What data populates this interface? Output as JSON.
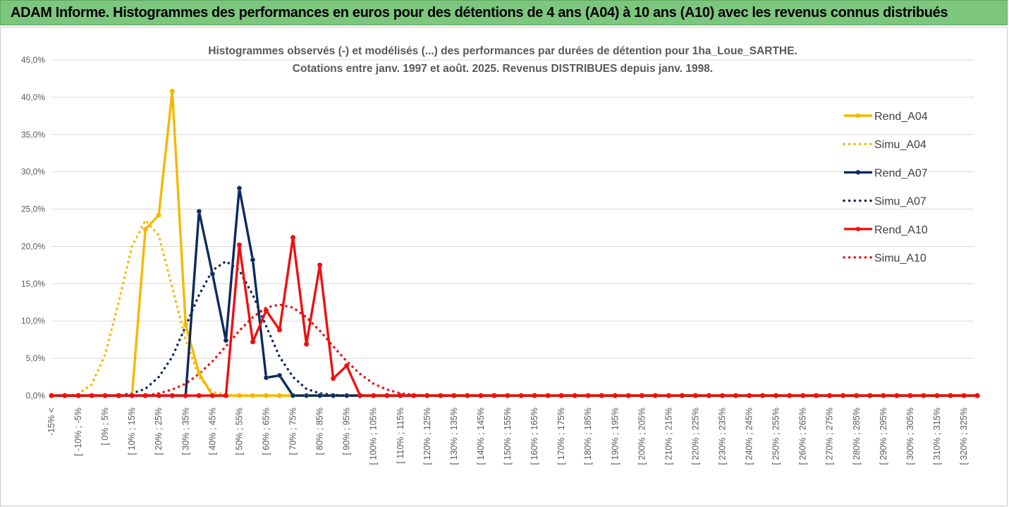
{
  "banner": {
    "title": "ADAM Informe. Histogrammes des performances en euros pour des détentions de 4 ans (A04) à 10 ans (A10) avec les revenus connus distribués"
  },
  "colors": {
    "banner_bg": "#7dc67e",
    "A04": "#f5b800",
    "A07": "#0d2a5e",
    "A10": "#ee1010",
    "gridline": "#d9d9d9"
  },
  "chart_data": {
    "type": "line",
    "title": "Histogrammes observés (-) et modélisés (...) des performances par durées de détention pour 1ha_Loue_SARTHE.",
    "subtitle": "Cotations entre janv. 1997 et août. 2025. Revenus DISTRIBUES depuis janv. 1998.",
    "xlabel": "",
    "ylabel": "",
    "ylim": [
      0,
      45
    ],
    "y_ticks": [
      "0,0%",
      "5,0%",
      "10,0%",
      "15,0%",
      "20,0%",
      "25,0%",
      "30,0%",
      "35,0%",
      "40,0%",
      "45,0%"
    ],
    "grid": "horizontal",
    "legend_position": "right",
    "x_labels": [
      "-15% <",
      "[ -10% ; -5%",
      "[ 0% ; 5%",
      "[ 10% ; 15%",
      "[ 20% ; 25%",
      "[ 30% ; 35%",
      "[ 40% ; 45%",
      "[ 50% ; 55%",
      "[ 60% ; 65%",
      "[ 70% ; 75%",
      "[ 80% ; 85%",
      "[ 90% ; 95%",
      "[ 100% ; 105%",
      "[ 110% ; 115%",
      "[ 120% ; 125%",
      "[ 130% ; 135%",
      "[ 140% ; 145%",
      "[ 150% ; 155%",
      "[ 160% ; 165%",
      "[ 170% ; 175%",
      "[ 180% ; 185%",
      "[ 190% ; 195%",
      "[ 200% ; 205%",
      "[ 210% ; 215%",
      "[ 220% ; 225%",
      "[ 230% ; 235%",
      "[ 240% ; 245%",
      "[ 250% ; 255%",
      "[ 260% ; 265%",
      "[ 270% ; 275%",
      "[ 280% ; 285%",
      "[ 290% ; 295%",
      "[ 300% ; 305%",
      "[ 310% ; 315%",
      "[ 320% ; 325%"
    ],
    "series": [
      {
        "name": "Rend_A04",
        "style": "solid",
        "color": "#f5b800",
        "values": [
          0,
          0,
          0,
          0,
          0,
          0,
          0,
          22.3,
          24.2,
          40.8,
          9.5,
          3.0,
          0,
          0,
          0,
          0,
          0,
          0,
          0,
          0,
          0,
          0,
          0,
          0,
          0,
          0,
          0,
          0,
          0,
          0,
          0,
          0,
          0,
          0,
          0,
          0,
          0,
          0,
          0,
          0,
          0,
          0,
          0,
          0,
          0,
          0,
          0,
          0,
          0,
          0,
          0,
          0,
          0,
          0,
          0,
          0,
          0,
          0,
          0,
          0,
          0,
          0,
          0,
          0,
          0,
          0,
          0,
          0,
          0,
          0
        ]
      },
      {
        "name": "Simu_A04",
        "style": "dotted",
        "color": "#f5b800",
        "values": [
          0,
          0,
          0.2,
          1.5,
          5.5,
          12.5,
          20.0,
          23.5,
          21.5,
          14.5,
          7.5,
          2.5,
          0.5,
          0.1,
          0,
          0,
          0,
          0,
          0,
          0,
          0,
          0,
          0,
          0,
          0,
          0,
          0,
          0,
          0,
          0,
          0,
          0,
          0,
          0,
          0,
          0,
          0,
          0,
          0,
          0,
          0,
          0,
          0,
          0,
          0,
          0,
          0,
          0,
          0,
          0,
          0,
          0,
          0,
          0,
          0,
          0,
          0,
          0,
          0,
          0,
          0,
          0,
          0,
          0,
          0,
          0,
          0,
          0,
          0,
          0
        ]
      },
      {
        "name": "Rend_A07",
        "style": "solid",
        "color": "#0d2a5e",
        "values": [
          0,
          0,
          0,
          0,
          0,
          0,
          0,
          0,
          0,
          0,
          0,
          24.7,
          16.3,
          7.4,
          27.8,
          18.2,
          2.4,
          2.7,
          0,
          0,
          0,
          0,
          0,
          0,
          0,
          0,
          0,
          0,
          0,
          0,
          0,
          0,
          0,
          0,
          0,
          0,
          0,
          0,
          0,
          0,
          0,
          0,
          0,
          0,
          0,
          0,
          0,
          0,
          0,
          0,
          0,
          0,
          0,
          0,
          0,
          0,
          0,
          0,
          0,
          0,
          0,
          0,
          0,
          0,
          0,
          0,
          0,
          0,
          0,
          0
        ]
      },
      {
        "name": "Simu_A07",
        "style": "dotted",
        "color": "#0d2a5e",
        "values": [
          0,
          0,
          0,
          0,
          0,
          0,
          0.3,
          0.9,
          2.5,
          5.2,
          9.3,
          13.5,
          16.8,
          18.0,
          16.8,
          13.5,
          9.3,
          5.2,
          2.5,
          0.9,
          0.3,
          0.1,
          0,
          0,
          0,
          0,
          0,
          0,
          0,
          0,
          0,
          0,
          0,
          0,
          0,
          0,
          0,
          0,
          0,
          0,
          0,
          0,
          0,
          0,
          0,
          0,
          0,
          0,
          0,
          0,
          0,
          0,
          0,
          0,
          0,
          0,
          0,
          0,
          0,
          0,
          0,
          0,
          0,
          0,
          0,
          0,
          0,
          0,
          0,
          0
        ]
      },
      {
        "name": "Rend_A10",
        "style": "solid",
        "color": "#ee1010",
        "values": [
          0,
          0,
          0,
          0,
          0,
          0,
          0,
          0,
          0,
          0,
          0,
          0,
          0,
          0,
          20.2,
          7.2,
          11.4,
          8.8,
          21.2,
          6.9,
          17.5,
          2.3,
          4.0,
          0,
          0,
          0,
          0,
          0,
          0,
          0,
          0,
          0,
          0,
          0,
          0,
          0,
          0,
          0,
          0,
          0,
          0,
          0,
          0,
          0,
          0,
          0,
          0,
          0,
          0,
          0,
          0,
          0,
          0,
          0,
          0,
          0,
          0,
          0,
          0,
          0,
          0,
          0,
          0,
          0,
          0,
          0,
          0,
          0,
          0,
          0
        ]
      },
      {
        "name": "Simu_A10",
        "style": "dotted",
        "color": "#ee1010",
        "values": [
          0,
          0,
          0,
          0,
          0,
          0,
          0,
          0,
          0.3,
          0.8,
          1.6,
          2.9,
          4.6,
          6.6,
          8.7,
          10.5,
          11.8,
          12.2,
          11.8,
          10.5,
          8.7,
          6.6,
          4.6,
          2.9,
          1.6,
          0.8,
          0.3,
          0.1,
          0,
          0,
          0,
          0,
          0,
          0,
          0,
          0,
          0,
          0,
          0,
          0,
          0,
          0,
          0,
          0,
          0,
          0,
          0,
          0,
          0,
          0,
          0,
          0,
          0,
          0,
          0,
          0,
          0,
          0,
          0,
          0,
          0,
          0,
          0,
          0,
          0,
          0,
          0,
          0,
          0,
          0
        ]
      }
    ]
  }
}
